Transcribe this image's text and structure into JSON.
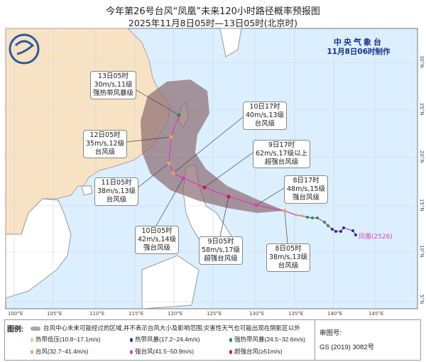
{
  "header": {
    "title": "今年第26号台风“凤凰”未来120小时路径概率预报图",
    "subtitle": "2025年11月8日05时—13日05时(北京时)"
  },
  "agency": {
    "name": "中央气象台",
    "made": "11月8日06时制作"
  },
  "typhoon_name": "凤凰(2526)",
  "colors": {
    "land": "#f7e3c3",
    "sea": "#dcefff",
    "cone": "#8c6b70",
    "track": "#d63fb8",
    "td": "#f2c27a",
    "ts": "#1f2fb5",
    "sts": "#2e8b3e",
    "ty": "#f0a070",
    "sty": "#d63fb8",
    "super": "#c8202a"
  },
  "axes": {
    "lon": [
      "100°E",
      "105°E",
      "110°E",
      "115°E",
      "120°E",
      "125°E",
      "130°E",
      "135°E",
      "140°E",
      "145°E"
    ],
    "lat": [
      "30°N",
      "25°N",
      "20°N",
      "15°N",
      "10°N",
      "5°N"
    ]
  },
  "forecast": [
    {
      "time": "13日05时",
      "wind": "30m/s,11级",
      "level": "强热带风暴级",
      "cat": "sts"
    },
    {
      "time": "12日05时",
      "wind": "35m/s,12级",
      "level": "台风级",
      "cat": "ty"
    },
    {
      "time": "11日05时",
      "wind": "38m/s,13级",
      "level": "台风级",
      "cat": "ty"
    },
    {
      "time": "10日17时",
      "wind": "40m/s,13级",
      "level": "台风级",
      "cat": "ty"
    },
    {
      "time": "10日05时",
      "wind": "42m/s,14级",
      "level": "强台风级",
      "cat": "sty"
    },
    {
      "time": "9日17时",
      "wind": "62m/s,17级以上",
      "level": "超强台风级",
      "cat": "super"
    },
    {
      "time": "9日05时",
      "wind": "58m/s,17级",
      "level": "超强台风级",
      "cat": "super"
    },
    {
      "time": "8日17时",
      "wind": "48m/s,15级",
      "level": "强台风级",
      "cat": "sty"
    },
    {
      "time": "8日05时",
      "wind": "38m/s,13级",
      "level": "台风级",
      "cat": "ty"
    }
  ],
  "legend": {
    "title": "图例:",
    "cone_desc": "台风中心未来可能经过的区域,并不表示台风大小及影响范围,灾害性天气也可能出现在阴影区以外",
    "items": [
      {
        "label": "热带低压(10.8~17.1m/s)",
        "cat": "td"
      },
      {
        "label": "热带风暴(17.2~24.4m/s)",
        "cat": "ts"
      },
      {
        "label": "强热带风暴(24.5~32.6m/s)",
        "cat": "sts"
      },
      {
        "label": "台风(32.7~41.4m/s)",
        "cat": "ty"
      },
      {
        "label": "强台风(41.5~50.9m/s)",
        "cat": "sty"
      },
      {
        "label": "超强台风(≥51m/s)",
        "cat": "super"
      }
    ]
  },
  "review": {
    "label": "审图号:",
    "number": "GS (2019) 3082号"
  }
}
